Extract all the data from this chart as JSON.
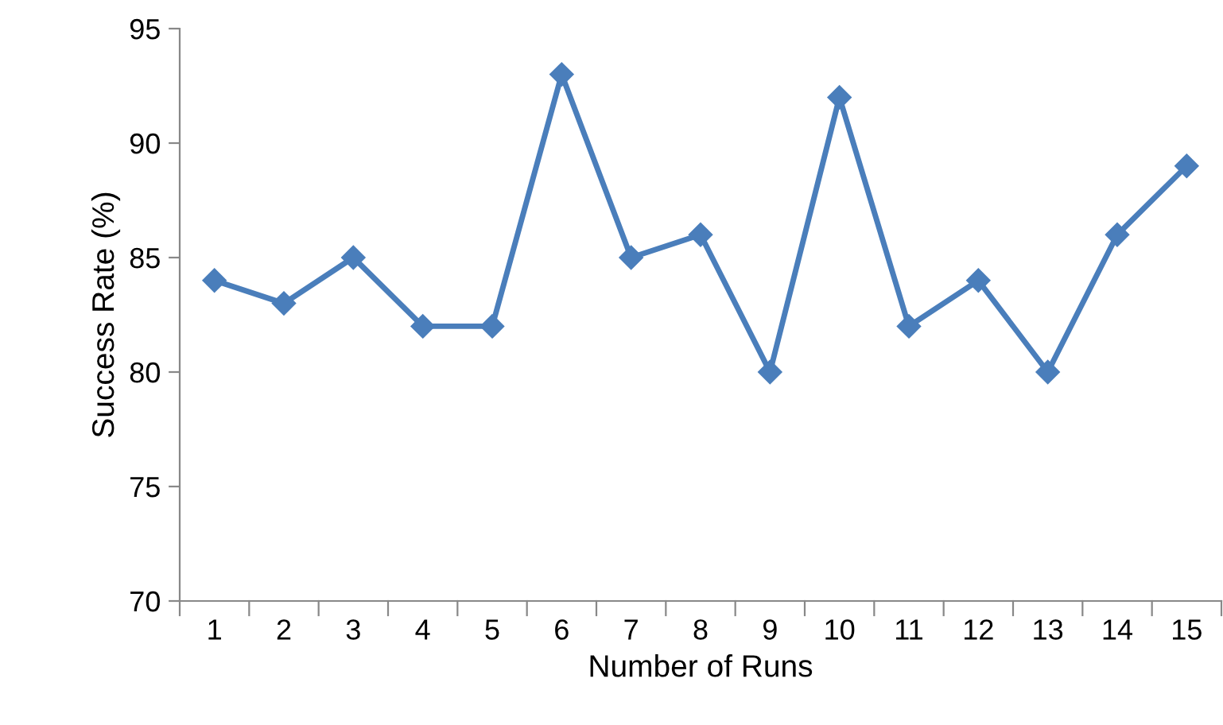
{
  "chart_data": {
    "type": "line",
    "xlabel": "Number of Runs",
    "ylabel": "Success Rate (%)",
    "categories": [
      "1",
      "2",
      "3",
      "4",
      "5",
      "6",
      "7",
      "8",
      "9",
      "10",
      "11",
      "12",
      "13",
      "14",
      "15"
    ],
    "series": [
      {
        "color": "#4a7ebb",
        "values": [
          84,
          83,
          85,
          82,
          82,
          93,
          85,
          86,
          80,
          92,
          82,
          84,
          80,
          86,
          89
        ]
      }
    ],
    "ylim": [
      70,
      95
    ],
    "yticks": [
      70,
      75,
      80,
      85,
      90,
      95
    ],
    "grid": false,
    "legend": false,
    "marker": "diamond",
    "line_style": "solid"
  }
}
